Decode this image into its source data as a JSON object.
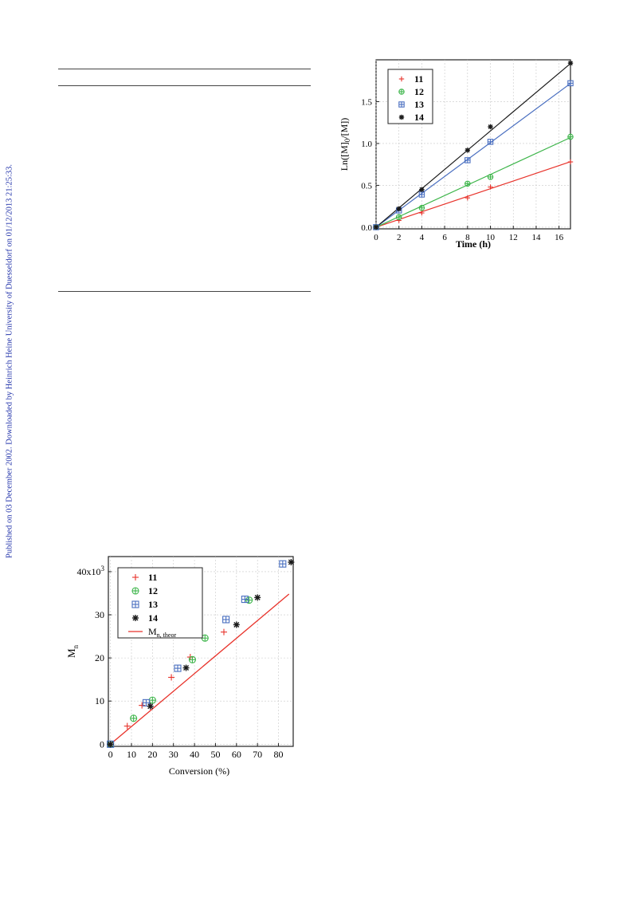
{
  "side_note": "Published on 03 December 2002. Downloaded by Heinrich Heine University of Duesseldorf on 01/12/2013 21:25:33.",
  "chart_data": [
    {
      "type": "scatter",
      "ylabel": "Ln([M]0/[M])",
      "xlabel": "Time (h)",
      "xlim": [
        0,
        17
      ],
      "ylim": [
        -0.02,
        2.0
      ],
      "xticks": [
        0,
        2,
        4,
        6,
        8,
        10,
        12,
        14,
        16
      ],
      "yticks": [
        0.0,
        0.5,
        1.0,
        1.5
      ],
      "ytick_labels": [
        "0.0",
        "0.5",
        "1.0",
        "1.5"
      ],
      "grid": true,
      "legend_position": "top-left",
      "series": [
        {
          "name": "11",
          "marker": "plus",
          "color": "#e8322a",
          "x": [
            0,
            2,
            4,
            8,
            10,
            17
          ],
          "y": [
            0.0,
            0.08,
            0.17,
            0.35,
            0.48,
            0.78
          ],
          "fit": [
            0.0,
            0.046
          ]
        },
        {
          "name": "12",
          "marker": "circle-plus",
          "color": "#3db54a",
          "x": [
            0,
            2,
            4,
            8,
            10,
            17
          ],
          "y": [
            0.0,
            0.12,
            0.23,
            0.52,
            0.6,
            1.08
          ],
          "fit": [
            0.0,
            0.063
          ]
        },
        {
          "name": "13",
          "marker": "square-plus",
          "color": "#4a6fc0",
          "x": [
            0,
            2,
            4,
            8,
            10,
            17
          ],
          "y": [
            0.0,
            0.2,
            0.39,
            0.8,
            1.02,
            1.72
          ],
          "fit": [
            0.0,
            0.101
          ]
        },
        {
          "name": "14",
          "marker": "asterisk",
          "color": "#1a1a1a",
          "x": [
            0,
            2,
            4,
            8,
            10,
            17
          ],
          "y": [
            0.0,
            0.22,
            0.45,
            0.92,
            1.2,
            1.96
          ],
          "fit": [
            0.0,
            0.115
          ]
        }
      ]
    },
    {
      "type": "scatter",
      "ylabel": "Mn",
      "xlabel": "Conversion (%)",
      "xlim": [
        -1,
        87
      ],
      "ylim": [
        -0.5,
        43.5
      ],
      "xticks": [
        0,
        10,
        20,
        30,
        40,
        50,
        60,
        70,
        80
      ],
      "yticks": [
        0,
        10,
        20,
        30,
        40
      ],
      "ytick_labels": [
        "0",
        "10",
        "20",
        "30",
        "40x10³"
      ],
      "grid": true,
      "legend_position": "top-left",
      "series": [
        {
          "name": "11",
          "marker": "plus",
          "color": "#e8322a",
          "x": [
            0,
            8,
            15,
            29,
            38,
            54
          ],
          "y": [
            0,
            4.2,
            9.0,
            15.5,
            20.2,
            26.0
          ]
        },
        {
          "name": "12",
          "marker": "circle-plus",
          "color": "#3db54a",
          "x": [
            0,
            11,
            20,
            39,
            45,
            66
          ],
          "y": [
            0,
            6.0,
            10.2,
            19.6,
            24.6,
            33.4
          ]
        },
        {
          "name": "13",
          "marker": "square-plus",
          "color": "#4a6fc0",
          "x": [
            0,
            17,
            32,
            55,
            64,
            82
          ],
          "y": [
            0,
            9.6,
            17.6,
            28.9,
            33.6,
            41.8
          ]
        },
        {
          "name": "14",
          "marker": "asterisk",
          "color": "#1a1a1a",
          "x": [
            0,
            19,
            36,
            60,
            70,
            86
          ],
          "y": [
            0,
            8.8,
            17.7,
            27.7,
            34.0,
            42.2
          ]
        },
        {
          "name": "Mn, theor",
          "marker": "line",
          "color": "#e8322a",
          "line": [
            [
              0,
              0
            ],
            [
              85,
              34.8
            ]
          ]
        }
      ]
    }
  ]
}
